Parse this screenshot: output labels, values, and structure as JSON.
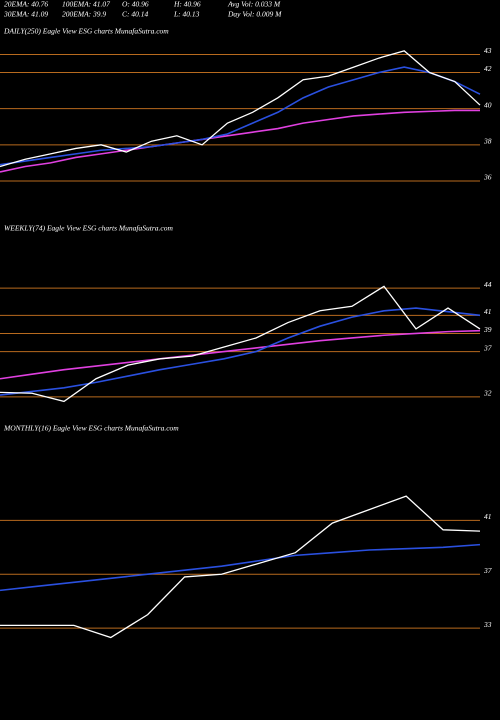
{
  "header": {
    "rows": [
      [
        "20EMA: 40.76",
        "100EMA: 41.07",
        "O: 40.96",
        "H: 40.96",
        "Avg Vol: 0.033 M"
      ],
      [
        "30EMA: 41.09",
        "200EMA: 39.9",
        "C: 40.14",
        "L: 40.13",
        "Day Vol: 0.009 M"
      ]
    ]
  },
  "chart_data": [
    {
      "type": "line",
      "title": "DAILY(250) Eagle  View  ESG charts MunafaSutra.com",
      "ylim": [
        35.5,
        43.8
      ],
      "yticks": [
        43,
        42,
        40,
        38,
        36
      ],
      "grid": true,
      "grid_color": "#b86a1e",
      "series": [
        {
          "name": "200EMA",
          "color": "#e040e0",
          "values": [
            36.5,
            36.8,
            37.0,
            37.3,
            37.5,
            37.7,
            37.9,
            38.1,
            38.3,
            38.5,
            38.7,
            38.9,
            39.2,
            39.4,
            39.6,
            39.7,
            39.8,
            39.85,
            39.9,
            39.9
          ]
        },
        {
          "name": "20EMA",
          "color": "#2a50e0",
          "values": [
            36.9,
            37.1,
            37.3,
            37.5,
            37.7,
            37.8,
            37.9,
            38.1,
            38.3,
            38.6,
            39.2,
            39.8,
            40.6,
            41.2,
            41.6,
            42.0,
            42.3,
            42.0,
            41.5,
            40.8
          ]
        },
        {
          "name": "Price",
          "color": "#ffffff",
          "values": [
            36.8,
            37.2,
            37.5,
            37.8,
            38.0,
            37.6,
            38.2,
            38.5,
            38.0,
            39.2,
            39.8,
            40.6,
            41.6,
            41.8,
            42.3,
            42.8,
            43.2,
            42.0,
            41.5,
            40.2
          ]
        }
      ]
    },
    {
      "type": "line",
      "title": "WEEKLY(74) Eagle  View  ESG charts MunafaSutra.com",
      "ylim": [
        30,
        46
      ],
      "yticks": [
        44,
        41,
        39,
        37,
        32
      ],
      "grid": true,
      "grid_color": "#b86a1e",
      "series": [
        {
          "name": "200EMA",
          "color": "#e040e0",
          "values": [
            34.0,
            34.5,
            35.0,
            35.4,
            35.8,
            36.2,
            36.6,
            37.0,
            37.4,
            37.8,
            38.2,
            38.5,
            38.8,
            39.0,
            39.2,
            39.3
          ]
        },
        {
          "name": "20EMA",
          "color": "#2a50e0",
          "values": [
            32.2,
            32.6,
            33.0,
            33.6,
            34.3,
            35.0,
            35.6,
            36.2,
            37.0,
            38.5,
            39.8,
            40.8,
            41.5,
            41.8,
            41.4,
            41.0
          ]
        },
        {
          "name": "Price",
          "color": "#ffffff",
          "values": [
            32.5,
            32.4,
            31.5,
            34.0,
            35.5,
            36.2,
            36.5,
            37.5,
            38.5,
            40.2,
            41.5,
            42.0,
            44.2,
            39.5,
            41.8,
            39.5
          ]
        }
      ]
    },
    {
      "type": "line",
      "title": "MONTHLY(16) Eagle  View  ESG charts MunafaSutra.com",
      "ylim": [
        31,
        44
      ],
      "yticks": [
        41,
        37,
        33
      ],
      "grid": true,
      "grid_color": "#b86a1e",
      "series": [
        {
          "name": "20EMA",
          "color": "#2a50e0",
          "values": [
            35.8,
            36.1,
            36.4,
            36.7,
            37.0,
            37.3,
            37.6,
            38.0,
            38.4,
            38.6,
            38.8,
            38.9,
            39.0,
            39.2
          ]
        },
        {
          "name": "Price",
          "color": "#ffffff",
          "values": [
            33.2,
            33.2,
            33.2,
            32.3,
            34.0,
            36.8,
            37.0,
            37.8,
            38.6,
            40.8,
            41.8,
            42.8,
            40.3,
            40.2
          ]
        }
      ]
    }
  ]
}
